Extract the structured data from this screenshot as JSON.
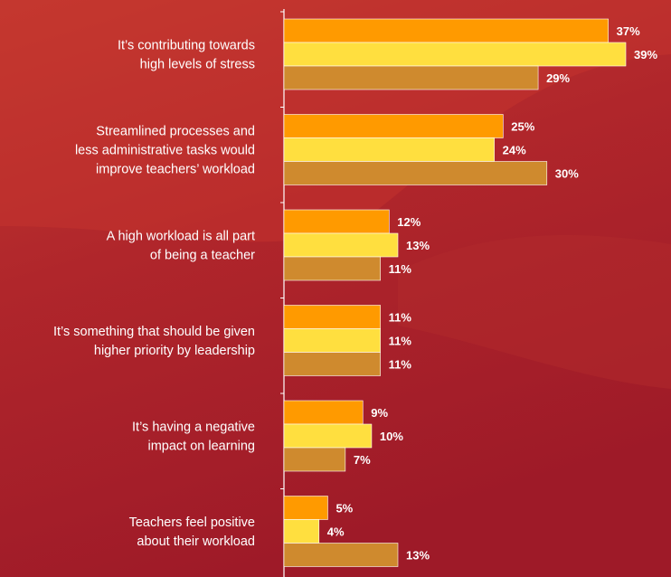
{
  "chart_data": {
    "type": "bar",
    "orientation": "horizontal",
    "categories": [
      [
        "It’s contributing towards",
        "high levels of stress"
      ],
      [
        "Streamlined processes and",
        "less administrative tasks would",
        "improve teachers’ workload"
      ],
      [
        "A high workload is all part",
        "of being a teacher"
      ],
      [
        "It’s something that should be given",
        "higher priority by leadership"
      ],
      [
        "It’s having a negative",
        "impact on learning"
      ],
      [
        "Teachers feel positive",
        "about their workload"
      ]
    ],
    "series": [
      {
        "values": [
          37,
          25,
          12,
          11,
          9,
          5
        ],
        "color": "#ff9a00"
      },
      {
        "values": [
          39,
          24,
          13,
          11,
          10,
          4
        ],
        "color": "#ffdf3f"
      },
      {
        "values": [
          29,
          30,
          11,
          11,
          7,
          13
        ],
        "color": "#cf8a2e"
      }
    ],
    "value_suffix": "%",
    "xlim": [
      0,
      40
    ],
    "grid": false,
    "legend": "none",
    "colors": {
      "background": "#a31d2a",
      "background_highlight": "#c8332c",
      "axis": "#ffffff",
      "text": "#ffffff",
      "bar_border": "#ffffff"
    }
  }
}
